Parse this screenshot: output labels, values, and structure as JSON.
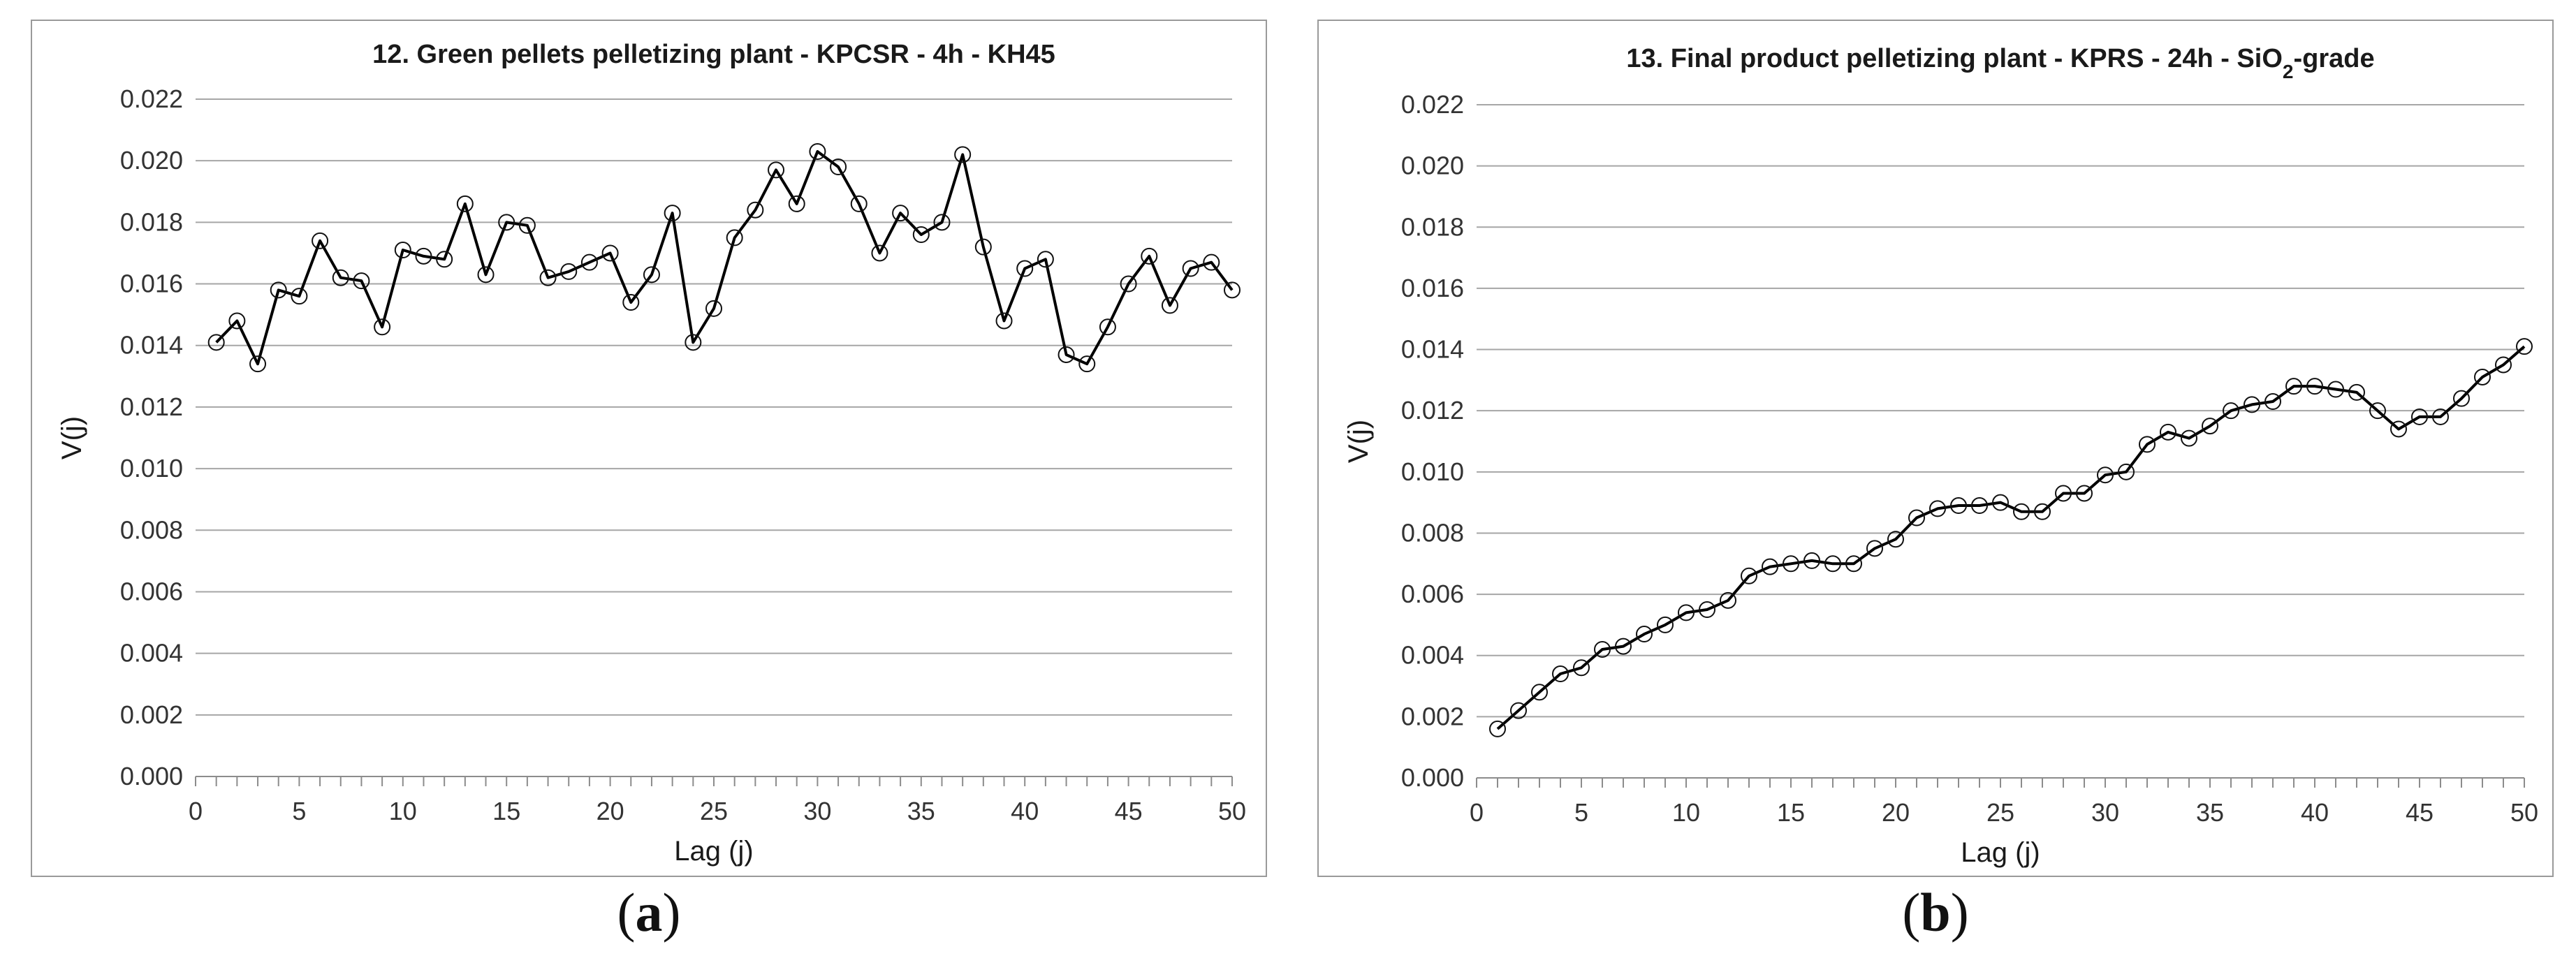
{
  "chart_data": [
    {
      "type": "line",
      "title_parts": [
        "12. Green pellets pelletizing plant - KPCSR - 4h - KH45"
      ],
      "xlabel": "Lag (j)",
      "ylabel": "V(j)",
      "xlim": [
        0,
        50
      ],
      "ylim": [
        0,
        0.022
      ],
      "xticks": [
        0,
        5,
        10,
        15,
        20,
        25,
        30,
        35,
        40,
        45,
        50
      ],
      "yticks": [
        "0.000",
        "0.002",
        "0.004",
        "0.006",
        "0.008",
        "0.010",
        "0.012",
        "0.014",
        "0.016",
        "0.018",
        "0.020",
        "0.022"
      ],
      "grid": "horizontal",
      "marker": "open-circle",
      "line_color": "#000000",
      "x": [
        1,
        2,
        3,
        4,
        5,
        6,
        7,
        8,
        9,
        10,
        11,
        12,
        13,
        14,
        15,
        16,
        17,
        18,
        19,
        20,
        21,
        22,
        23,
        24,
        25,
        26,
        27,
        28,
        29,
        30,
        31,
        32,
        33,
        34,
        35,
        36,
        37,
        38,
        39,
        40,
        41,
        42,
        43,
        44,
        45,
        46,
        47,
        48,
        49,
        50
      ],
      "values": [
        0.0141,
        0.0148,
        0.0134,
        0.0158,
        0.0156,
        0.0174,
        0.0162,
        0.0161,
        0.0146,
        0.0171,
        0.0169,
        0.0168,
        0.0186,
        0.0163,
        0.018,
        0.0179,
        0.0162,
        0.0164,
        0.0167,
        0.017,
        0.0154,
        0.0163,
        0.0183,
        0.0141,
        0.0152,
        0.0175,
        0.0184,
        0.0197,
        0.0186,
        0.0203,
        0.0198,
        0.0186,
        0.017,
        0.0183,
        0.0176,
        0.018,
        0.0202,
        0.0172,
        0.0148,
        0.0165,
        0.0168,
        0.0137,
        0.0134,
        0.0146,
        0.016,
        0.0169,
        0.0153,
        0.0165,
        0.0167,
        0.0158
      ]
    },
    {
      "type": "line",
      "title_parts": [
        "13. Final product pelletizing plant - KPRS - 24h - SiO",
        "2",
        "-grade"
      ],
      "xlabel": "Lag (j)",
      "ylabel": "V(j)",
      "xlim": [
        0,
        50
      ],
      "ylim": [
        0,
        0.022
      ],
      "xticks": [
        0,
        5,
        10,
        15,
        20,
        25,
        30,
        35,
        40,
        45,
        50
      ],
      "yticks": [
        "0.000",
        "0.002",
        "0.004",
        "0.006",
        "0.008",
        "0.010",
        "0.012",
        "0.014",
        "0.016",
        "0.018",
        "0.020",
        "0.022"
      ],
      "grid": "horizontal",
      "marker": "open-circle",
      "line_color": "#000000",
      "x": [
        1,
        2,
        3,
        4,
        5,
        6,
        7,
        8,
        9,
        10,
        11,
        12,
        13,
        14,
        15,
        16,
        17,
        18,
        19,
        20,
        21,
        22,
        23,
        24,
        25,
        26,
        27,
        28,
        29,
        30,
        31,
        32,
        33,
        34,
        35,
        36,
        37,
        38,
        39,
        40,
        41,
        42,
        43,
        44,
        45,
        46,
        47,
        48,
        49,
        50
      ],
      "values": [
        0.0016,
        0.0022,
        0.0028,
        0.0034,
        0.0036,
        0.0042,
        0.0043,
        0.0047,
        0.005,
        0.0054,
        0.0055,
        0.0058,
        0.0066,
        0.0069,
        0.007,
        0.0071,
        0.007,
        0.007,
        0.0075,
        0.0078,
        0.0085,
        0.0088,
        0.0089,
        0.0089,
        0.009,
        0.0087,
        0.0087,
        0.0093,
        0.0093,
        0.0099,
        0.01,
        0.0109,
        0.0113,
        0.0111,
        0.0115,
        0.012,
        0.0122,
        0.0123,
        0.0128,
        0.0128,
        0.0127,
        0.0126,
        0.012,
        0.0114,
        0.0118,
        0.0118,
        0.0124,
        0.0131,
        0.0135,
        0.0141
      ]
    }
  ],
  "captions": [
    {
      "open": "(",
      "letter": "a",
      "close": ")"
    },
    {
      "open": "(",
      "letter": "b",
      "close": ")"
    }
  ]
}
